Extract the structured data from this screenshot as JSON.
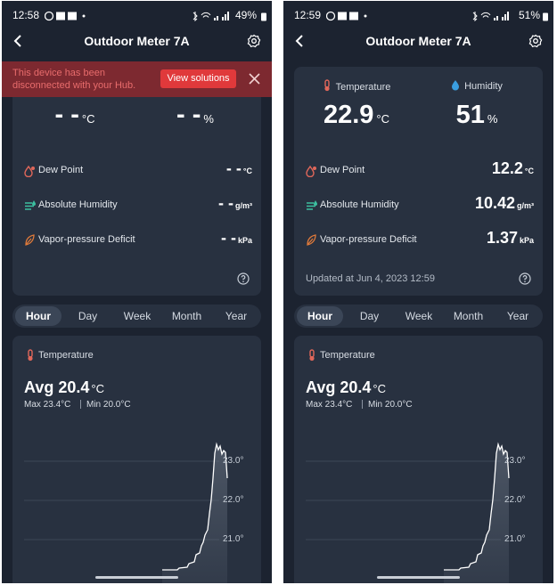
{
  "screens": [
    {
      "status_bar": {
        "time": "12:58",
        "battery": "49%"
      },
      "header": {
        "title": "Outdoor Meter 7A"
      },
      "banner": {
        "message": "This device has been disconnected with your Hub.",
        "button": "View solutions"
      },
      "readings": [
        {
          "value": "- -",
          "unit": "°C"
        },
        {
          "value": "- -",
          "unit": "%"
        }
      ],
      "metrics": [
        {
          "label": "Dew Point",
          "value": "- -",
          "unit": "°C"
        },
        {
          "label": "Absolute Humidity",
          "value": "- -",
          "unit": "g/m³"
        },
        {
          "label": "Vapor-pressure Deficit",
          "value": "- -",
          "unit": "kPa"
        }
      ],
      "tabs": [
        "Hour",
        "Day",
        "Week",
        "Month",
        "Year"
      ],
      "chart_card": {
        "title": "Temperature",
        "avg": "Avg 20.4",
        "avg_unit": "°C",
        "max": "Max 23.4°C",
        "min": "Min 20.0°C",
        "y_tick_labels": [
          "23.0°",
          "22.0°",
          "21.0°"
        ]
      }
    },
    {
      "status_bar": {
        "time": "12:59",
        "battery": "51%"
      },
      "header": {
        "title": "Outdoor Meter 7A"
      },
      "readings": [
        {
          "label": "Temperature",
          "value": "22.9",
          "unit": "°C"
        },
        {
          "label": "Humidity",
          "value": "51",
          "unit": "%"
        }
      ],
      "metrics": [
        {
          "label": "Dew Point",
          "value": "12.2",
          "unit": "°C"
        },
        {
          "label": "Absolute Humidity",
          "value": "10.42",
          "unit": "g/m³"
        },
        {
          "label": "Vapor-pressure Deficit",
          "value": "1.37",
          "unit": "kPa"
        }
      ],
      "updated": "Updated at Jun 4, 2023 12:59",
      "tabs": [
        "Hour",
        "Day",
        "Week",
        "Month",
        "Year"
      ],
      "chart_card": {
        "title": "Temperature",
        "avg": "Avg 20.4",
        "avg_unit": "°C",
        "max": "Max 23.4°C",
        "min": "Min 20.0°C",
        "y_tick_labels": [
          "23.0°",
          "22.0°",
          "21.0°"
        ]
      }
    }
  ]
}
